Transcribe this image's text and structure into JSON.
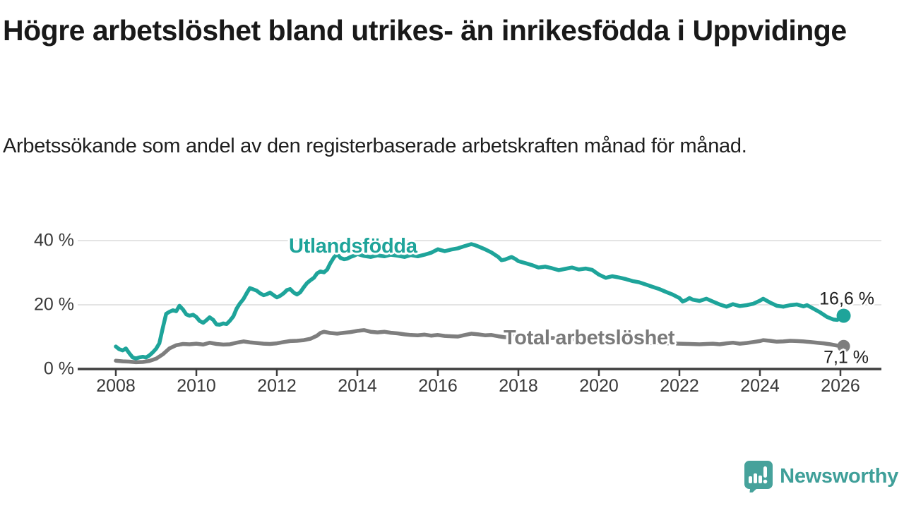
{
  "header": {
    "title": "Högre arbetslöshet bland utrikes- än inrikesfödda i Uppvidinge",
    "subtitle": "Arbetssökande som andel av den registerbaserade arbetskraften månad för månad."
  },
  "footer": {
    "brand": "Newsworthy",
    "logo_icon": "newsworthy-speech-bubble-bar-chart-icon",
    "brand_color": "#3f9f99"
  },
  "chart_data": {
    "type": "line",
    "title": "Högre arbetslöshet bland utrikes- än inrikesfödda i Uppvidinge",
    "subtitle": "Arbetssökande som andel av den registerbaserade arbetskraften månad för månad.",
    "xlabel": "",
    "ylabel": "",
    "x_ticks": [
      "2008",
      "2010",
      "2012",
      "2014",
      "2016",
      "2018",
      "2020",
      "2022",
      "2024",
      "2026"
    ],
    "y_ticks": [
      "0 %",
      "20 %",
      "40 %"
    ],
    "y_tick_values": [
      0,
      20,
      40
    ],
    "xlim": [
      2007.1,
      2027.6
    ],
    "ylim": [
      0,
      44
    ],
    "grid": "horizontal-light",
    "grid_color": "#dcdcdc",
    "axis_color": "#3f3f3f",
    "legend_position": "inline-labels",
    "series": [
      {
        "name": "Utlandsfödda",
        "color": "#1ea49a",
        "end_label": "16,6 %",
        "end_value": 16.6,
        "points": [
          [
            2008.0,
            7.0
          ],
          [
            2008.08,
            6.2
          ],
          [
            2008.17,
            5.8
          ],
          [
            2008.25,
            6.4
          ],
          [
            2008.33,
            5.0
          ],
          [
            2008.42,
            3.6
          ],
          [
            2008.5,
            3.3
          ],
          [
            2008.58,
            3.6
          ],
          [
            2008.67,
            3.8
          ],
          [
            2008.75,
            3.6
          ],
          [
            2008.83,
            4.2
          ],
          [
            2008.92,
            5.2
          ],
          [
            2009.0,
            6.3
          ],
          [
            2009.08,
            8.0
          ],
          [
            2009.17,
            13.0
          ],
          [
            2009.25,
            17.2
          ],
          [
            2009.33,
            17.8
          ],
          [
            2009.42,
            18.3
          ],
          [
            2009.5,
            18.0
          ],
          [
            2009.58,
            19.7
          ],
          [
            2009.67,
            18.5
          ],
          [
            2009.75,
            17.0
          ],
          [
            2009.83,
            16.6
          ],
          [
            2009.92,
            16.9
          ],
          [
            2010.0,
            16.2
          ],
          [
            2010.08,
            15.0
          ],
          [
            2010.17,
            14.4
          ],
          [
            2010.25,
            15.2
          ],
          [
            2010.33,
            16.1
          ],
          [
            2010.42,
            15.3
          ],
          [
            2010.5,
            13.9
          ],
          [
            2010.58,
            13.8
          ],
          [
            2010.67,
            14.2
          ],
          [
            2010.75,
            14.0
          ],
          [
            2010.83,
            15.0
          ],
          [
            2010.92,
            16.4
          ],
          [
            2011.0,
            18.8
          ],
          [
            2011.08,
            20.4
          ],
          [
            2011.17,
            21.8
          ],
          [
            2011.25,
            23.6
          ],
          [
            2011.33,
            25.2
          ],
          [
            2011.42,
            24.8
          ],
          [
            2011.5,
            24.4
          ],
          [
            2011.58,
            23.6
          ],
          [
            2011.67,
            23.0
          ],
          [
            2011.75,
            23.3
          ],
          [
            2011.83,
            23.8
          ],
          [
            2011.92,
            23.0
          ],
          [
            2012.0,
            22.3
          ],
          [
            2012.08,
            22.8
          ],
          [
            2012.17,
            23.6
          ],
          [
            2012.25,
            24.6
          ],
          [
            2012.33,
            24.9
          ],
          [
            2012.42,
            23.8
          ],
          [
            2012.5,
            23.2
          ],
          [
            2012.58,
            23.9
          ],
          [
            2012.67,
            25.5
          ],
          [
            2012.75,
            26.8
          ],
          [
            2012.83,
            27.6
          ],
          [
            2012.92,
            28.4
          ],
          [
            2013.0,
            29.8
          ],
          [
            2013.08,
            30.4
          ],
          [
            2013.17,
            30.1
          ],
          [
            2013.25,
            31.0
          ],
          [
            2013.33,
            33.0
          ],
          [
            2013.42,
            34.8
          ],
          [
            2013.5,
            35.8
          ],
          [
            2013.58,
            34.6
          ],
          [
            2013.67,
            34.2
          ],
          [
            2013.75,
            34.4
          ],
          [
            2013.83,
            34.9
          ],
          [
            2013.92,
            35.3
          ],
          [
            2014.0,
            35.8
          ],
          [
            2014.17,
            35.2
          ],
          [
            2014.33,
            34.9
          ],
          [
            2014.5,
            35.4
          ],
          [
            2014.67,
            35.1
          ],
          [
            2014.83,
            35.6
          ],
          [
            2015.0,
            35.3
          ],
          [
            2015.17,
            34.9
          ],
          [
            2015.33,
            35.5
          ],
          [
            2015.5,
            35.1
          ],
          [
            2015.67,
            35.6
          ],
          [
            2015.83,
            36.2
          ],
          [
            2016.0,
            37.3
          ],
          [
            2016.17,
            36.7
          ],
          [
            2016.33,
            37.2
          ],
          [
            2016.5,
            37.6
          ],
          [
            2016.67,
            38.3
          ],
          [
            2016.83,
            38.9
          ],
          [
            2016.92,
            38.6
          ],
          [
            2017.0,
            38.2
          ],
          [
            2017.17,
            37.3
          ],
          [
            2017.33,
            36.3
          ],
          [
            2017.5,
            34.9
          ],
          [
            2017.58,
            33.9
          ],
          [
            2017.67,
            34.1
          ],
          [
            2017.83,
            34.9
          ],
          [
            2017.92,
            34.3
          ],
          [
            2018.0,
            33.6
          ],
          [
            2018.17,
            33.0
          ],
          [
            2018.33,
            32.4
          ],
          [
            2018.5,
            31.6
          ],
          [
            2018.67,
            31.9
          ],
          [
            2018.83,
            31.4
          ],
          [
            2019.0,
            30.8
          ],
          [
            2019.17,
            31.2
          ],
          [
            2019.33,
            31.6
          ],
          [
            2019.5,
            31.0
          ],
          [
            2019.67,
            31.3
          ],
          [
            2019.83,
            30.9
          ],
          [
            2020.0,
            29.4
          ],
          [
            2020.17,
            28.4
          ],
          [
            2020.33,
            28.9
          ],
          [
            2020.5,
            28.5
          ],
          [
            2020.67,
            28.0
          ],
          [
            2020.83,
            27.4
          ],
          [
            2021.0,
            27.0
          ],
          [
            2021.17,
            26.3
          ],
          [
            2021.33,
            25.6
          ],
          [
            2021.5,
            24.9
          ],
          [
            2021.67,
            24.0
          ],
          [
            2021.83,
            23.2
          ],
          [
            2022.0,
            22.1
          ],
          [
            2022.08,
            21.0
          ],
          [
            2022.17,
            21.5
          ],
          [
            2022.25,
            22.1
          ],
          [
            2022.33,
            21.6
          ],
          [
            2022.5,
            21.2
          ],
          [
            2022.67,
            21.9
          ],
          [
            2022.83,
            21.0
          ],
          [
            2023.0,
            20.1
          ],
          [
            2023.17,
            19.4
          ],
          [
            2023.33,
            20.2
          ],
          [
            2023.5,
            19.6
          ],
          [
            2023.67,
            19.9
          ],
          [
            2023.83,
            20.3
          ],
          [
            2024.0,
            21.3
          ],
          [
            2024.08,
            21.9
          ],
          [
            2024.25,
            20.7
          ],
          [
            2024.42,
            19.7
          ],
          [
            2024.58,
            19.4
          ],
          [
            2024.75,
            19.9
          ],
          [
            2024.92,
            20.1
          ],
          [
            2025.08,
            19.5
          ],
          [
            2025.17,
            19.9
          ],
          [
            2025.33,
            18.8
          ],
          [
            2025.5,
            17.6
          ],
          [
            2025.67,
            16.2
          ],
          [
            2025.83,
            15.4
          ],
          [
            2025.92,
            15.3
          ],
          [
            2026.0,
            15.8
          ],
          [
            2026.08,
            16.6
          ]
        ]
      },
      {
        "name": "Total arbetslöshet",
        "color": "#7e7e7e",
        "end_label": "7,1 %",
        "end_value": 7.1,
        "points": [
          [
            2008.0,
            2.6
          ],
          [
            2008.17,
            2.4
          ],
          [
            2008.33,
            2.3
          ],
          [
            2008.5,
            2.1
          ],
          [
            2008.67,
            2.2
          ],
          [
            2008.83,
            2.5
          ],
          [
            2009.0,
            3.2
          ],
          [
            2009.17,
            4.6
          ],
          [
            2009.33,
            6.4
          ],
          [
            2009.5,
            7.4
          ],
          [
            2009.67,
            7.8
          ],
          [
            2009.83,
            7.7
          ],
          [
            2010.0,
            7.9
          ],
          [
            2010.17,
            7.6
          ],
          [
            2010.33,
            8.2
          ],
          [
            2010.5,
            7.8
          ],
          [
            2010.67,
            7.6
          ],
          [
            2010.83,
            7.7
          ],
          [
            2011.0,
            8.2
          ],
          [
            2011.17,
            8.6
          ],
          [
            2011.33,
            8.3
          ],
          [
            2011.5,
            8.1
          ],
          [
            2011.67,
            7.9
          ],
          [
            2011.83,
            7.8
          ],
          [
            2012.0,
            8.0
          ],
          [
            2012.17,
            8.4
          ],
          [
            2012.33,
            8.7
          ],
          [
            2012.5,
            8.8
          ],
          [
            2012.67,
            9.0
          ],
          [
            2012.83,
            9.4
          ],
          [
            2013.0,
            10.4
          ],
          [
            2013.08,
            11.2
          ],
          [
            2013.17,
            11.6
          ],
          [
            2013.33,
            11.2
          ],
          [
            2013.5,
            11.0
          ],
          [
            2013.67,
            11.3
          ],
          [
            2013.83,
            11.5
          ],
          [
            2014.0,
            11.9
          ],
          [
            2014.17,
            12.1
          ],
          [
            2014.33,
            11.6
          ],
          [
            2014.5,
            11.4
          ],
          [
            2014.67,
            11.6
          ],
          [
            2014.83,
            11.3
          ],
          [
            2015.0,
            11.1
          ],
          [
            2015.17,
            10.8
          ],
          [
            2015.33,
            10.6
          ],
          [
            2015.5,
            10.5
          ],
          [
            2015.67,
            10.7
          ],
          [
            2015.83,
            10.4
          ],
          [
            2016.0,
            10.6
          ],
          [
            2016.17,
            10.3
          ],
          [
            2016.33,
            10.2
          ],
          [
            2016.5,
            10.1
          ],
          [
            2016.67,
            10.6
          ],
          [
            2016.83,
            11.0
          ],
          [
            2017.0,
            10.8
          ],
          [
            2017.17,
            10.5
          ],
          [
            2017.33,
            10.6
          ],
          [
            2017.5,
            10.2
          ],
          [
            2017.67,
            9.9
          ],
          [
            2017.83,
            10.1
          ],
          [
            2018.0,
            10.3
          ],
          [
            2018.25,
            10.0
          ],
          [
            2018.5,
            9.9
          ],
          [
            2018.75,
            9.7
          ],
          [
            2019.0,
            9.6
          ],
          [
            2019.25,
            9.4
          ],
          [
            2019.5,
            9.2
          ],
          [
            2019.75,
            9.1
          ],
          [
            2020.0,
            9.0
          ],
          [
            2020.25,
            8.8
          ],
          [
            2020.5,
            8.7
          ],
          [
            2020.75,
            8.5
          ],
          [
            2021.0,
            8.4
          ],
          [
            2021.25,
            8.2
          ],
          [
            2021.5,
            8.1
          ],
          [
            2021.75,
            8.0
          ],
          [
            2022.0,
            7.9
          ],
          [
            2022.25,
            7.8
          ],
          [
            2022.5,
            7.7
          ],
          [
            2022.67,
            7.8
          ],
          [
            2022.83,
            7.9
          ],
          [
            2023.0,
            7.7
          ],
          [
            2023.17,
            8.0
          ],
          [
            2023.33,
            8.2
          ],
          [
            2023.5,
            7.9
          ],
          [
            2023.67,
            8.1
          ],
          [
            2023.83,
            8.4
          ],
          [
            2024.0,
            8.7
          ],
          [
            2024.08,
            9.0
          ],
          [
            2024.25,
            8.8
          ],
          [
            2024.42,
            8.5
          ],
          [
            2024.58,
            8.6
          ],
          [
            2024.75,
            8.8
          ],
          [
            2024.92,
            8.7
          ],
          [
            2025.08,
            8.6
          ],
          [
            2025.25,
            8.4
          ],
          [
            2025.42,
            8.2
          ],
          [
            2025.58,
            8.0
          ],
          [
            2025.75,
            7.7
          ],
          [
            2025.92,
            7.3
          ],
          [
            2026.08,
            7.1
          ]
        ]
      }
    ]
  }
}
